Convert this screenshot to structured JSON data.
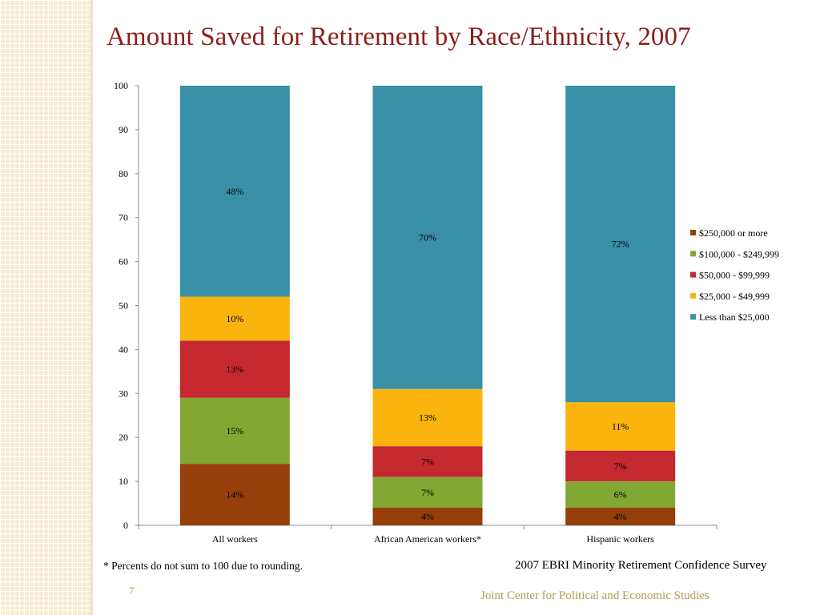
{
  "slide": {
    "title": "Amount Saved for Retirement by Race/Ethnicity, 2007",
    "footnote": "* Percents do not sum to 100 due to rounding.",
    "source": "2007 EBRI Minority Retirement Confidence Survey",
    "page_number": "7",
    "organization": "Joint Center for Political and Economic Studies"
  },
  "chart_data": {
    "type": "bar",
    "stacked": true,
    "title": "",
    "xlabel": "",
    "ylabel": "",
    "ylim": [
      0,
      100
    ],
    "yticks": [
      0,
      10,
      20,
      30,
      40,
      50,
      60,
      70,
      80,
      90,
      100
    ],
    "grid": false,
    "legend_position": "right",
    "categories": [
      "All workers",
      "African American workers*",
      "Hispanic workers"
    ],
    "series": [
      {
        "name": "$250,000 or more",
        "color": "#963f0a",
        "values": [
          14,
          4,
          4
        ],
        "labels": [
          "14%",
          "4%",
          "4%"
        ]
      },
      {
        "name": "$100,000 - $249,999",
        "color": "#83a733",
        "values": [
          15,
          7,
          6
        ],
        "labels": [
          "15%",
          "7%",
          "6%"
        ]
      },
      {
        "name": "$50,000 - $99,999",
        "color": "#c4292f",
        "values": [
          13,
          7,
          7
        ],
        "labels": [
          "13%",
          "7%",
          "7%"
        ]
      },
      {
        "name": "$25,000 - $49,999",
        "color": "#fbb40e",
        "values": [
          10,
          13,
          11
        ],
        "labels": [
          "10%",
          "13%",
          "11%"
        ]
      },
      {
        "name": "Less than $25,000",
        "color": "#3990a7",
        "values": [
          48,
          70,
          72
        ],
        "labels": [
          "48%",
          "70%",
          "72%"
        ]
      }
    ]
  }
}
